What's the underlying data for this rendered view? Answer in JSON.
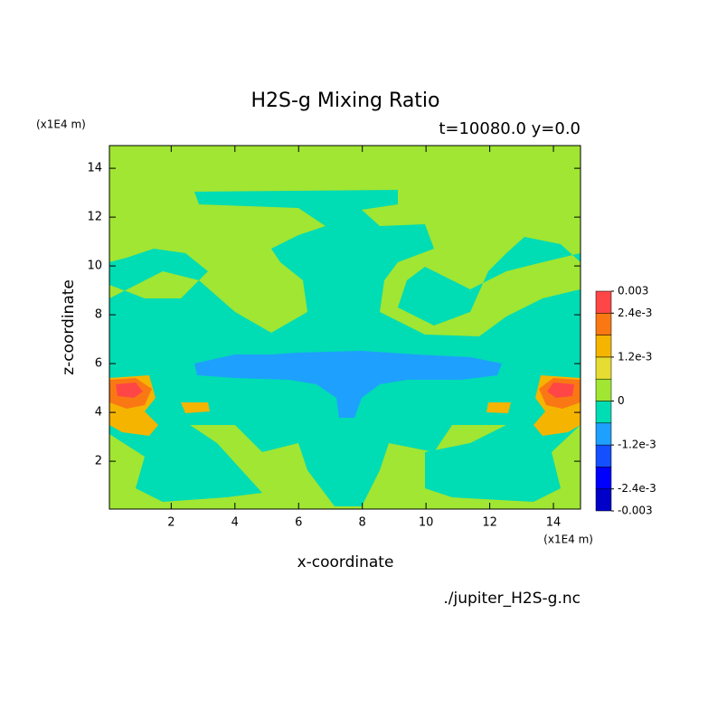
{
  "chart_data": {
    "type": "contour",
    "title": "H2S-g Mixing Ratio",
    "subtitle": "t=10080.0 y=0.0",
    "x_label": "x-coordinate",
    "y_label": "z-coordinate",
    "x_unit": "(x1E4 m)",
    "y_unit": "(x1E4 m)",
    "file": "./jupiter_H2S-g.nc",
    "xlim": [
      0.06,
      14.85
    ],
    "ylim": [
      0.04,
      14.93
    ],
    "xticks": [
      2,
      4,
      6,
      8,
      10,
      12,
      14
    ],
    "yticks": [
      2,
      4,
      6,
      8,
      10,
      12,
      14
    ],
    "levels": [
      -0.003,
      -0.0024,
      -0.0018,
      -0.0012,
      -0.0006,
      0,
      0.0006,
      0.0012,
      0.0018,
      0.0024,
      0.003
    ],
    "colors": [
      "#0000c8",
      "#0000ff",
      "#1450ff",
      "#1ea0ff",
      "#00dcb4",
      "#a0e632",
      "#e6dc32",
      "#f5b400",
      "#fa7814",
      "#ff4646"
    ],
    "colorbar_ticks": [
      0.003,
      {
        "value": 0.0024,
        "label": "2.4e-3"
      },
      {
        "value": 0.0012,
        "label": "1.2e-3"
      },
      0,
      {
        "value": -0.0012,
        "label": "-1.2e-3"
      },
      {
        "value": -0.0024,
        "label": "-2.4e-3"
      },
      -0.003
    ]
  }
}
